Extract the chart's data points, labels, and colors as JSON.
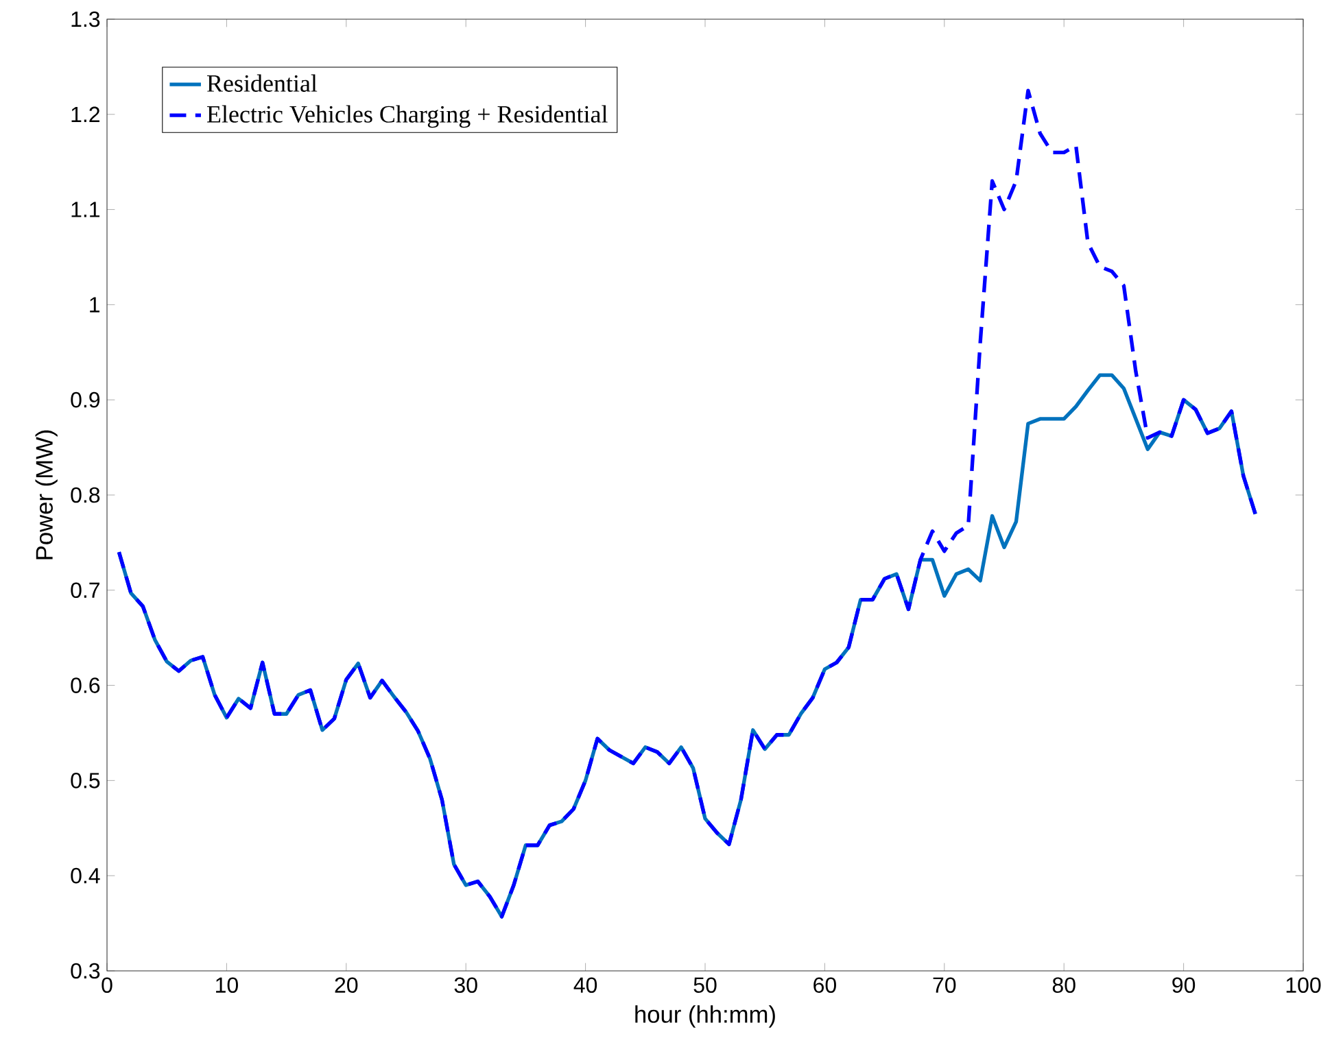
{
  "chart_data": {
    "type": "line",
    "xlabel": "hour (hh:mm)",
    "ylabel": "Power (MW)",
    "x": [
      1,
      2,
      3,
      4,
      5,
      6,
      7,
      8,
      9,
      10,
      11,
      12,
      13,
      14,
      15,
      16,
      17,
      18,
      19,
      20,
      21,
      22,
      23,
      24,
      25,
      26,
      27,
      28,
      29,
      30,
      31,
      32,
      33,
      34,
      35,
      36,
      37,
      38,
      39,
      40,
      41,
      42,
      43,
      44,
      45,
      46,
      47,
      48,
      49,
      50,
      51,
      52,
      53,
      54,
      55,
      56,
      57,
      58,
      59,
      60,
      61,
      62,
      63,
      64,
      65,
      66,
      67,
      68,
      69,
      70,
      71,
      72,
      73,
      74,
      75,
      76,
      77,
      78,
      79,
      80,
      81,
      82,
      83,
      84,
      85,
      86,
      87,
      88,
      89,
      90,
      91,
      92,
      93,
      94,
      95,
      96
    ],
    "series": [
      {
        "name": "Residential",
        "color": "#0072bd",
        "line_style": "solid",
        "values": [
          0.74,
          0.697,
          0.683,
          0.648,
          0.625,
          0.615,
          0.626,
          0.63,
          0.59,
          0.566,
          0.586,
          0.576,
          0.624,
          0.57,
          0.57,
          0.59,
          0.595,
          0.553,
          0.565,
          0.606,
          0.623,
          0.587,
          0.605,
          0.588,
          0.572,
          0.552,
          0.523,
          0.48,
          0.412,
          0.39,
          0.394,
          0.378,
          0.357,
          0.39,
          0.432,
          0.432,
          0.453,
          0.457,
          0.47,
          0.5,
          0.544,
          0.532,
          0.525,
          0.518,
          0.535,
          0.53,
          0.518,
          0.535,
          0.513,
          0.46,
          0.445,
          0.433,
          0.48,
          0.553,
          0.533,
          0.548,
          0.548,
          0.57,
          0.587,
          0.617,
          0.624,
          0.64,
          0.69,
          0.69,
          0.712,
          0.717,
          0.68,
          0.732,
          0.732,
          0.694,
          0.717,
          0.722,
          0.71,
          0.778,
          0.745,
          0.772,
          0.875,
          0.88,
          0.88,
          0.88,
          0.893,
          0.91,
          0.926,
          0.926,
          0.912,
          0.88,
          0.848,
          0.866,
          0.862,
          0.9,
          0.89,
          0.865,
          0.87,
          0.888,
          0.82,
          0.78
        ]
      },
      {
        "name": "Electric Vehicles Charging + Residential",
        "color": "#0000ff",
        "line_style": "dashed",
        "values": [
          0.74,
          0.697,
          0.683,
          0.648,
          0.625,
          0.615,
          0.626,
          0.63,
          0.59,
          0.566,
          0.586,
          0.576,
          0.624,
          0.57,
          0.57,
          0.59,
          0.595,
          0.553,
          0.565,
          0.606,
          0.623,
          0.587,
          0.605,
          0.588,
          0.572,
          0.552,
          0.523,
          0.48,
          0.412,
          0.39,
          0.394,
          0.378,
          0.357,
          0.39,
          0.432,
          0.432,
          0.453,
          0.457,
          0.47,
          0.5,
          0.544,
          0.532,
          0.525,
          0.518,
          0.535,
          0.53,
          0.518,
          0.535,
          0.513,
          0.46,
          0.445,
          0.433,
          0.48,
          0.553,
          0.533,
          0.548,
          0.548,
          0.57,
          0.587,
          0.617,
          0.624,
          0.64,
          0.69,
          0.69,
          0.712,
          0.717,
          0.68,
          0.732,
          0.762,
          0.741,
          0.76,
          0.768,
          0.96,
          1.13,
          1.1,
          1.13,
          1.225,
          1.18,
          1.16,
          1.16,
          1.167,
          1.065,
          1.04,
          1.035,
          1.02,
          0.93,
          0.86,
          0.866,
          0.862,
          0.9,
          0.89,
          0.865,
          0.87,
          0.888,
          0.82,
          0.78
        ]
      }
    ],
    "xlim": [
      0,
      100
    ],
    "xticks": [
      0,
      10,
      20,
      30,
      40,
      50,
      60,
      70,
      80,
      90,
      100
    ],
    "ylim": [
      0.3,
      1.3
    ],
    "yticks": [
      0.3,
      0.4,
      0.5,
      0.6,
      0.7,
      0.8,
      0.9,
      1,
      1.1,
      1.2,
      1.3
    ],
    "legend": "top left",
    "grid": false,
    "marker": "none"
  }
}
